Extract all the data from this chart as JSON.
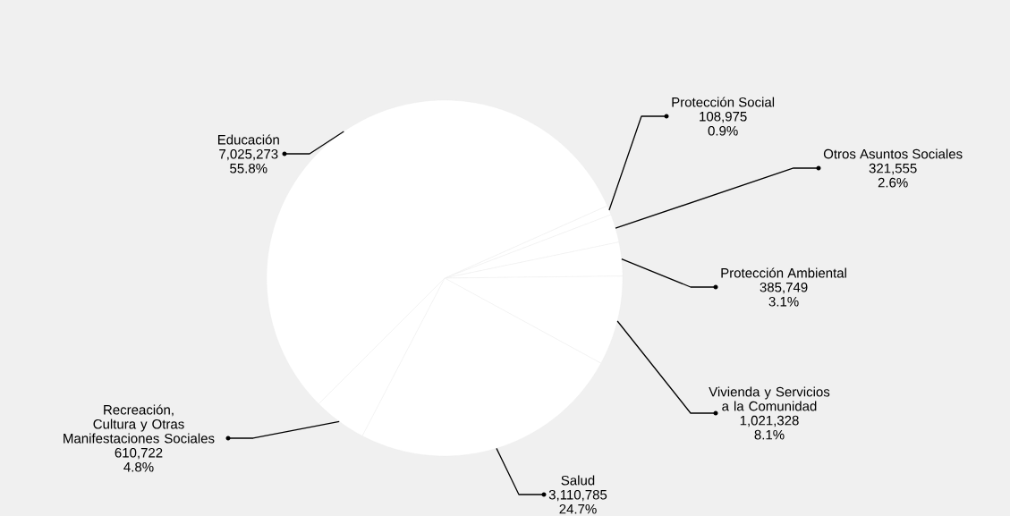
{
  "chart_data": {
    "type": "pie",
    "categories": [
      "Protección Social",
      "Otros Asuntos Sociales",
      "Protección Ambiental",
      "Vivienda y Servicios a la Comunidad",
      "Salud",
      "Recreación, Cultura y Otras Manifestaciones Sociales",
      "Educación"
    ],
    "values": [
      108975,
      321555,
      385749,
      1021328,
      3110785,
      610722,
      7025273
    ],
    "value_labels": [
      "108,975",
      "321,555",
      "385,749",
      "1,021,328",
      "3,110,785",
      "610,722",
      "7,025,273"
    ],
    "annotations": [
      "0.9%",
      "2.6%",
      "3.1%",
      "8.1%",
      "24.7%",
      "4.8%",
      "55.8%"
    ],
    "colors": [
      "#ffffff",
      "#ffffff",
      "#ffffff",
      "#ffffff",
      "#ffffff",
      "#ffffff",
      "#ffffff"
    ]
  }
}
